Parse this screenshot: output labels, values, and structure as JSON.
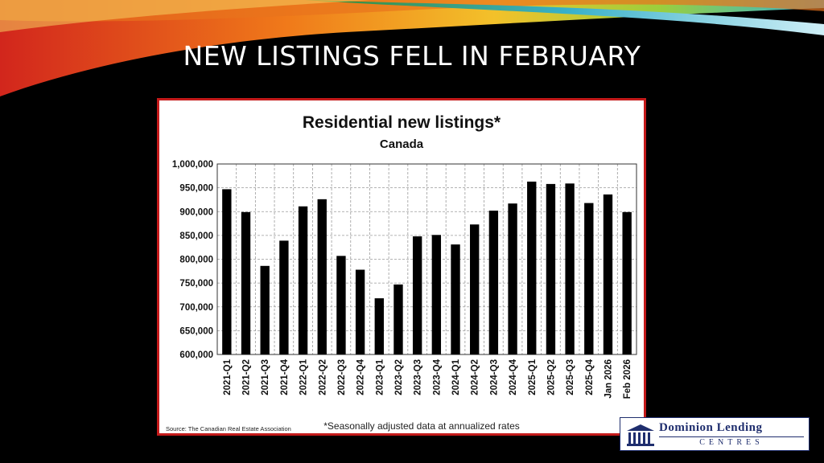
{
  "slide": {
    "title": "NEW LISTINGS FELL IN FEBRUARY"
  },
  "chart_data": {
    "type": "bar",
    "title": "Residential new listings*",
    "subtitle": "Canada",
    "categories": [
      "2021-Q1",
      "2021-Q2",
      "2021-Q3",
      "2021-Q4",
      "2022-Q1",
      "2022-Q2",
      "2022-Q3",
      "2022-Q4",
      "2023-Q1",
      "2023-Q2",
      "2023-Q3",
      "2023-Q4",
      "2024-Q1",
      "2024-Q2",
      "2024-Q3",
      "2024-Q4",
      "2025-Q1",
      "2025-Q2",
      "2025-Q3",
      "2025-Q4",
      "Jan 2026",
      "Feb 2026"
    ],
    "values": [
      947000,
      899000,
      786000,
      839000,
      911000,
      926000,
      807000,
      778000,
      718000,
      747000,
      848000,
      851000,
      831000,
      873000,
      902000,
      917000,
      963000,
      958000,
      959000,
      918000,
      936000,
      899000
    ],
    "ylim": [
      600000,
      1000000
    ],
    "yticks": [
      "600,000",
      "650,000",
      "700,000",
      "750,000",
      "800,000",
      "850,000",
      "900,000",
      "950,000",
      "1,000,000"
    ],
    "grid": "dashed vertical and horizontal",
    "bar_color": "#000000",
    "footnote": "*Seasonally adjusted data at annualized rates",
    "source": "Source: The Canadian Real Estate Association"
  },
  "logo": {
    "line1": "Dominion Lending",
    "line2": "CENTRES",
    "color": "#1f2e6e"
  },
  "colors": {
    "background": "#000000",
    "chart_border": "#c41a1a"
  }
}
